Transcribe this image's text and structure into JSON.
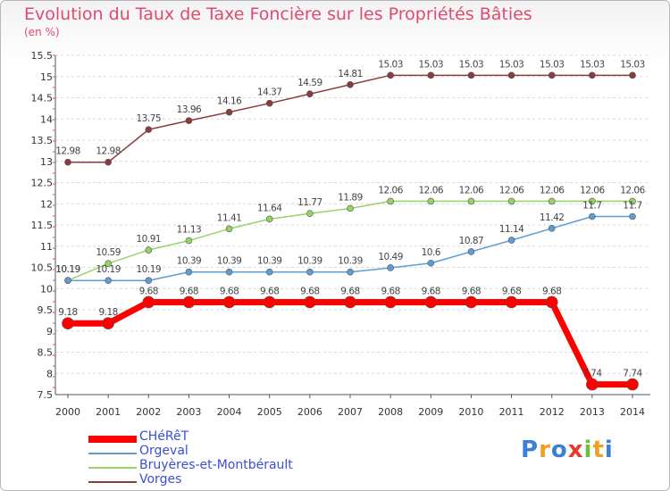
{
  "chart_data": {
    "type": "line",
    "title": "Evolution du Taux de Taxe Foncière sur les Propriétés Bâties",
    "subtitle": "(en %)",
    "categories": [
      "2000",
      "2001",
      "2002",
      "2003",
      "2004",
      "2005",
      "2006",
      "2007",
      "2008",
      "2009",
      "2010",
      "2011",
      "2012",
      "2013",
      "2014"
    ],
    "ylim": [
      7.5,
      15.5
    ],
    "yticks": [
      "7.5",
      "8",
      "8.5",
      "9",
      "9.5",
      "10",
      "10.5",
      "11",
      "11.5",
      "12",
      "12.5",
      "13",
      "13.5",
      "14",
      "14.5",
      "15",
      "15.5"
    ],
    "grid": "horizontal dashed",
    "legend_position": "bottom-left",
    "series": [
      {
        "name": "CHéRêT",
        "color": "#ff0000",
        "values": [
          9.18,
          9.18,
          9.68,
          9.68,
          9.68,
          9.68,
          9.68,
          9.68,
          9.68,
          9.68,
          9.68,
          9.68,
          9.68,
          7.74,
          7.74
        ],
        "labels": [
          "9.18",
          "9.18",
          "9.68",
          "9.68",
          "9.68",
          "9.68",
          "9.68",
          "9.68",
          "9.68",
          "9.68",
          "9.68",
          "9.68",
          "9.68",
          "7.74",
          "7.74"
        ]
      },
      {
        "name": "Orgeval",
        "color": "#5e9dd3",
        "values": [
          10.19,
          10.19,
          10.19,
          10.39,
          10.39,
          10.39,
          10.39,
          10.39,
          10.49,
          10.6,
          10.87,
          11.14,
          11.42,
          11.7,
          11.7
        ],
        "labels": [
          "10.19",
          "10.19",
          "10.19",
          "10.39",
          "10.39",
          "10.39",
          "10.39",
          "10.39",
          "10.49",
          "10.6",
          "10.87",
          "11.14",
          "11.42",
          "11.7",
          "11.7"
        ]
      },
      {
        "name": "Bruyères-et-Montbérault",
        "color": "#94d466",
        "values": [
          10.19,
          10.59,
          10.91,
          11.13,
          11.41,
          11.64,
          11.77,
          11.89,
          12.06,
          12.06,
          12.06,
          12.06,
          12.06,
          12.06,
          12.06
        ],
        "labels": [
          "10.19",
          "10.59",
          "10.91",
          "11.13",
          "11.41",
          "11.64",
          "11.77",
          "11.89",
          "12.06",
          "12.06",
          "12.06",
          "12.06",
          "12.06",
          "12.06",
          "12.06"
        ]
      },
      {
        "name": "Vorges",
        "color": "#8a3c3c",
        "values": [
          12.98,
          12.98,
          13.75,
          13.96,
          14.16,
          14.37,
          14.59,
          14.81,
          15.03,
          15.03,
          15.03,
          15.03,
          15.03,
          15.03,
          15.03
        ],
        "labels": [
          "12.98",
          "12.98",
          "13.75",
          "13.96",
          "14.16",
          "14.37",
          "14.59",
          "14.81",
          "15.03",
          "15.03",
          "15.03",
          "15.03",
          "15.03",
          "15.03",
          "15.03"
        ]
      }
    ]
  },
  "logo": {
    "letters": [
      "P",
      "r",
      "o",
      "x",
      "i",
      "t",
      "i"
    ],
    "colors": [
      "#3b7fd6",
      "#f0a020",
      "#3b7fd6",
      "#e33b2e",
      "#6cbf3a",
      "#f0a020",
      "#3b7fd6"
    ]
  }
}
